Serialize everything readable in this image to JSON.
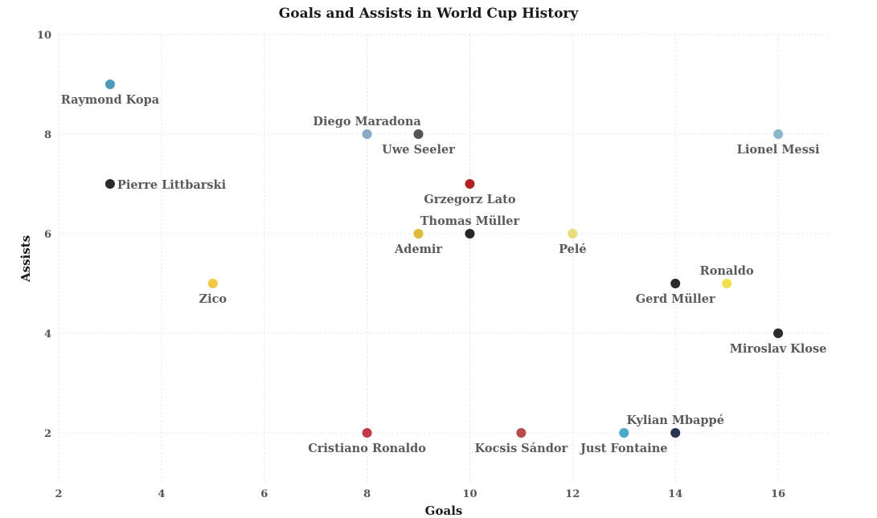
{
  "chart_data": {
    "type": "scatter",
    "title": "Goals and Assists in World Cup History",
    "xlabel": "Goals",
    "ylabel": "Assists",
    "xlim": [
      2,
      17
    ],
    "ylim": [
      1,
      10
    ],
    "xticks": [
      2,
      4,
      6,
      8,
      10,
      12,
      14,
      16
    ],
    "yticks": [
      2,
      4,
      6,
      8,
      10
    ],
    "grid": true,
    "points": [
      {
        "label": "Raymond Kopa",
        "x": 3,
        "y": 9,
        "color": "#4a9ab8",
        "label_pos": "below"
      },
      {
        "label": "Pierre Littbarski",
        "x": 3,
        "y": 7,
        "color": "#2b2b2b",
        "label_pos": "right"
      },
      {
        "label": "Zico",
        "x": 5,
        "y": 5,
        "color": "#f2c744",
        "label_pos": "below"
      },
      {
        "label": "Diego Maradona",
        "x": 8,
        "y": 8,
        "color": "#8aa8c8",
        "label_pos": "above"
      },
      {
        "label": "Cristiano Ronaldo",
        "x": 8,
        "y": 2,
        "color": "#c03a4a",
        "label_pos": "below"
      },
      {
        "label": "Uwe Seeler",
        "x": 9,
        "y": 8,
        "color": "#555555",
        "label_pos": "below"
      },
      {
        "label": "Ademir",
        "x": 9,
        "y": 6,
        "color": "#e0b93a",
        "label_pos": "below"
      },
      {
        "label": "Grzegorz Lato",
        "x": 10,
        "y": 7,
        "color": "#b22222",
        "label_pos": "below"
      },
      {
        "label": "Thomas Müller",
        "x": 10,
        "y": 6,
        "color": "#262626",
        "label_pos": "above"
      },
      {
        "label": "Kocsis Sándor",
        "x": 11,
        "y": 2,
        "color": "#b84a4a",
        "label_pos": "below"
      },
      {
        "label": "Pelé",
        "x": 12,
        "y": 6,
        "color": "#e8dc7a",
        "label_pos": "below"
      },
      {
        "label": "Just Fontaine",
        "x": 13,
        "y": 2,
        "color": "#4aa8c8",
        "label_pos": "below"
      },
      {
        "label": "Kylian Mbappé",
        "x": 14,
        "y": 2,
        "color": "#2a3450",
        "label_pos": "above"
      },
      {
        "label": "Gerd Müller",
        "x": 14,
        "y": 5,
        "color": "#2b2b2b",
        "label_pos": "below"
      },
      {
        "label": "Ronaldo",
        "x": 15,
        "y": 5,
        "color": "#f0e050",
        "label_pos": "above"
      },
      {
        "label": "Lionel Messi",
        "x": 16,
        "y": 8,
        "color": "#8ab8c8",
        "label_pos": "below"
      },
      {
        "label": "Miroslav Klose",
        "x": 16,
        "y": 4,
        "color": "#2b2b2b",
        "label_pos": "below"
      }
    ]
  }
}
